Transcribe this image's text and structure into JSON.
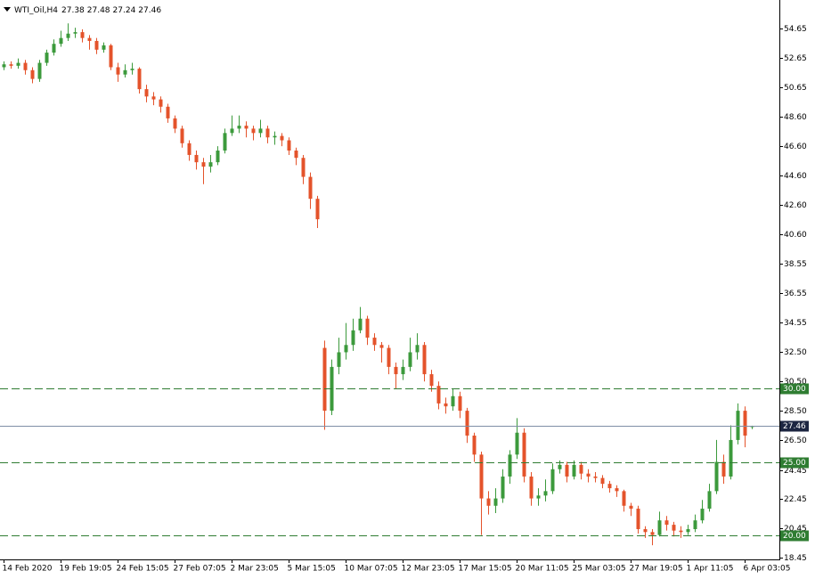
{
  "chart_data": {
    "type": "candlestick",
    "title": "WTI_Oil,H4",
    "categories": [
      "14 Feb 2020",
      null,
      null,
      null,
      null,
      null,
      null,
      null,
      "19 Feb 19:05",
      null,
      null,
      null,
      null,
      null,
      null,
      null,
      "24 Feb 15:05",
      null,
      null,
      null,
      null,
      null,
      null,
      null,
      "27 Feb 07:05",
      null,
      null,
      null,
      null,
      null,
      null,
      null,
      "2 Mar 23:05",
      null,
      null,
      null,
      null,
      null,
      null,
      null,
      "5 Mar 15:05",
      null,
      null,
      null,
      null,
      null,
      null,
      null,
      "10 Mar 07:05",
      null,
      null,
      null,
      null,
      null,
      null,
      null,
      "12 Mar 23:05",
      null,
      null,
      null,
      null,
      null,
      null,
      null,
      "17 Mar 15:05",
      null,
      null,
      null,
      null,
      null,
      null,
      null,
      "20 Mar 11:05",
      null,
      null,
      null,
      null,
      null,
      null,
      null,
      "25 Mar 03:05",
      null,
      null,
      null,
      null,
      null,
      null,
      null,
      "27 Mar 19:05",
      null,
      null,
      null,
      null,
      null,
      null,
      null,
      "1 Apr 11:05",
      null,
      null,
      null,
      null,
      null,
      null,
      null,
      "6 Apr 03:05",
      null
    ],
    "open": [
      52.0,
      52.2,
      52.1,
      52.3,
      51.8,
      51.2,
      52.3,
      53.0,
      53.6,
      54.0,
      54.3,
      54.4,
      54.0,
      53.8,
      53.2,
      53.5,
      52.0,
      51.5,
      51.8,
      51.9,
      50.5,
      50.0,
      49.8,
      49.3,
      48.5,
      47.8,
      46.8,
      46.0,
      45.5,
      45.2,
      45.5,
      46.3,
      47.5,
      47.8,
      48.0,
      47.8,
      47.5,
      47.8,
      47.2,
      47.3,
      47.0,
      46.3,
      45.8,
      44.5,
      43.0,
      32.8,
      28.5,
      31.5,
      32.5,
      33.0,
      34.0,
      34.8,
      33.5,
      33.0,
      32.8,
      31.5,
      31.0,
      31.5,
      32.5,
      33.0,
      31.0,
      30.2,
      29.0,
      28.8,
      29.5,
      28.5,
      26.8,
      25.5,
      22.5,
      22.0,
      22.5,
      24.0,
      25.5,
      27.0,
      24.0,
      22.5,
      22.7,
      23.0,
      24.5,
      24.8,
      24.0,
      24.8,
      24.2,
      24.0,
      23.9,
      23.5,
      23.2,
      23.0,
      22.0,
      21.8,
      20.4,
      20.2,
      20.0,
      21.0,
      20.7,
      20.3,
      20.2,
      20.4,
      21.0,
      21.8,
      23.0,
      25.0,
      24.0,
      26.5,
      28.5,
      27.38
    ],
    "high": [
      52.4,
      52.4,
      52.6,
      52.5,
      52.0,
      52.5,
      53.2,
      53.9,
      54.5,
      55.0,
      54.7,
      54.6,
      54.2,
      54.0,
      53.7,
      53.6,
      52.3,
      52.2,
      52.3,
      52.0,
      50.8,
      50.3,
      50.0,
      49.5,
      48.7,
      48.0,
      47.0,
      46.3,
      45.8,
      46.0,
      46.6,
      47.8,
      48.7,
      48.7,
      48.3,
      48.0,
      48.4,
      48.0,
      47.6,
      47.5,
      47.2,
      46.5,
      46.0,
      44.8,
      43.2,
      33.3,
      32.0,
      33.5,
      34.5,
      34.8,
      35.6,
      35.0,
      33.8,
      33.2,
      33.0,
      31.8,
      32.0,
      33.5,
      33.8,
      33.2,
      31.3,
      30.5,
      29.4,
      30.0,
      29.8,
      28.7,
      27.0,
      25.7,
      23.0,
      23.2,
      24.5,
      25.8,
      28.0,
      27.3,
      24.3,
      23.2,
      23.8,
      24.9,
      25.1,
      25.0,
      25.1,
      25.0,
      24.5,
      24.3,
      24.1,
      23.7,
      23.4,
      23.1,
      22.2,
      22.0,
      20.6,
      20.4,
      21.6,
      21.3,
      20.9,
      20.6,
      20.7,
      21.4,
      22.4,
      23.5,
      26.5,
      25.5,
      27.5,
      29.0,
      28.8,
      27.48
    ],
    "low": [
      51.8,
      51.9,
      51.9,
      51.5,
      50.9,
      51.0,
      52.1,
      52.8,
      53.4,
      53.8,
      54.0,
      53.7,
      53.2,
      52.9,
      53.0,
      51.8,
      51.0,
      51.3,
      51.5,
      50.2,
      49.6,
      49.4,
      48.9,
      48.2,
      47.5,
      46.5,
      45.6,
      45.0,
      44.0,
      44.8,
      45.3,
      46.1,
      47.3,
      47.5,
      47.2,
      47.0,
      47.2,
      46.8,
      46.7,
      46.6,
      46.0,
      45.3,
      44.0,
      42.3,
      41.0,
      27.2,
      28.2,
      31.0,
      32.0,
      32.6,
      33.8,
      33.0,
      32.6,
      31.8,
      31.0,
      30.0,
      30.6,
      31.2,
      32.0,
      30.5,
      29.8,
      28.6,
      28.3,
      28.5,
      28.0,
      26.3,
      25.0,
      20.0,
      21.4,
      21.5,
      22.2,
      23.5,
      25.2,
      23.6,
      22.0,
      22.0,
      22.3,
      22.8,
      24.2,
      23.6,
      23.8,
      23.8,
      23.6,
      23.6,
      23.2,
      22.9,
      22.6,
      21.6,
      21.3,
      20.1,
      19.8,
      19.3,
      19.9,
      20.3,
      19.9,
      19.8,
      20.0,
      20.2,
      20.8,
      21.6,
      22.8,
      23.5,
      23.8,
      26.2,
      26.0,
      27.24
    ],
    "close": [
      52.2,
      52.1,
      52.3,
      51.8,
      51.2,
      52.3,
      53.0,
      53.6,
      54.0,
      54.3,
      54.4,
      54.0,
      53.8,
      53.2,
      53.5,
      52.0,
      51.5,
      51.8,
      51.9,
      50.5,
      50.0,
      49.8,
      49.3,
      48.5,
      47.8,
      46.8,
      46.0,
      45.5,
      45.2,
      45.5,
      46.3,
      47.5,
      47.8,
      48.0,
      47.8,
      47.5,
      47.8,
      47.2,
      47.3,
      47.0,
      46.3,
      45.8,
      44.5,
      43.0,
      41.6,
      28.5,
      31.5,
      32.5,
      33.0,
      34.0,
      34.8,
      33.5,
      33.0,
      32.8,
      31.5,
      31.0,
      31.5,
      32.5,
      33.0,
      31.0,
      30.2,
      29.0,
      28.8,
      29.5,
      28.5,
      26.8,
      25.5,
      22.5,
      22.0,
      22.5,
      24.0,
      25.5,
      27.0,
      24.0,
      22.5,
      22.7,
      23.0,
      24.5,
      24.8,
      24.0,
      24.8,
      24.2,
      24.0,
      23.9,
      23.5,
      23.2,
      23.0,
      22.0,
      21.8,
      20.4,
      20.2,
      20.0,
      21.0,
      20.7,
      20.3,
      20.2,
      20.4,
      21.0,
      21.8,
      23.0,
      25.0,
      24.0,
      26.5,
      28.5,
      26.8,
      27.46
    ],
    "ylim": [
      18.33,
      56.6
    ],
    "yticks": [
      54.65,
      52.65,
      50.65,
      {
        "value": 48.6,
        "label": "48.60"
      },
      {
        "value": 46.6,
        "label": "46.60"
      },
      {
        "value": 44.6,
        "label": "44.60"
      },
      {
        "value": 42.6,
        "label": "42.60"
      },
      {
        "value": 40.6,
        "label": "40.60"
      },
      38.55,
      36.55,
      34.55,
      {
        "value": 32.5,
        "label": "32.50"
      },
      {
        "value": 30.5,
        "label": "30.50"
      },
      {
        "value": 28.5,
        "label": "28.50"
      },
      {
        "value": 26.5,
        "label": "26.50"
      },
      24.45,
      22.45,
      20.45,
      18.45
    ],
    "levels": [
      {
        "value": 30,
        "label": "30.00"
      },
      {
        "value": 25,
        "label": "25.00"
      },
      {
        "value": 20,
        "label": "20.00"
      }
    ],
    "up_color": "#3c9a3c",
    "down_color": "#e4532b",
    "level_color": "#2f7d32",
    "price_color": "#7f8fa6"
  }
}
